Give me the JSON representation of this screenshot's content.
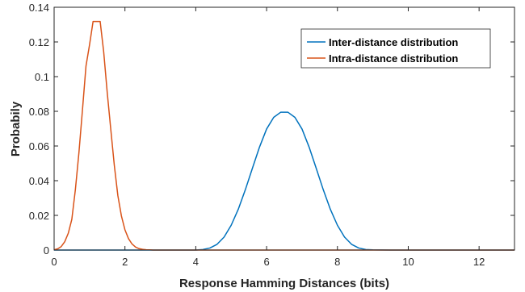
{
  "chart_data": {
    "type": "line",
    "title": "",
    "xlabel": "Response Hamming Distances (bits)",
    "ylabel": "Probabily",
    "xlim": [
      0,
      13
    ],
    "ylim": [
      0,
      0.14
    ],
    "xticks": [
      0,
      2,
      4,
      6,
      8,
      10,
      12
    ],
    "yticks": [
      0,
      0.02,
      0.04,
      0.06,
      0.08,
      0.1,
      0.12,
      0.14
    ],
    "xtick_labels": [
      "0",
      "2",
      "4",
      "6",
      "8",
      "10",
      "12"
    ],
    "ytick_labels": [
      "0",
      "0.02",
      "0.04",
      "0.06",
      "0.08",
      "0.1",
      "0.12",
      "0.14"
    ],
    "grid": false,
    "legend_position": "top-right",
    "series": [
      {
        "name": "Inter-distance distribution",
        "color": "#0072BD",
        "x": [
          0,
          0.5,
          1,
          1.5,
          2,
          2.5,
          3,
          3.5,
          4,
          4.2,
          4.4,
          4.6,
          4.8,
          5.0,
          5.2,
          5.4,
          5.6,
          5.8,
          6.0,
          6.2,
          6.4,
          6.6,
          6.8,
          7.0,
          7.2,
          7.4,
          7.6,
          7.8,
          8.0,
          8.2,
          8.4,
          8.6,
          8.8,
          9.0,
          9.5,
          10,
          11,
          12,
          13
        ],
        "y": [
          0,
          0,
          0,
          0,
          0,
          0,
          0,
          0,
          0,
          0.0003,
          0.0012,
          0.0033,
          0.0075,
          0.0143,
          0.0235,
          0.0348,
          0.0472,
          0.0594,
          0.0698,
          0.0765,
          0.0795,
          0.0795,
          0.0765,
          0.0698,
          0.0594,
          0.0472,
          0.0348,
          0.0235,
          0.0143,
          0.0075,
          0.0033,
          0.0012,
          0.0003,
          0.0001,
          0,
          0,
          0,
          0,
          0
        ]
      },
      {
        "name": "Intra-distance distribution",
        "color": "#D95319",
        "x": [
          0,
          0.1,
          0.2,
          0.3,
          0.4,
          0.5,
          0.6,
          0.7,
          0.8,
          0.9,
          1.0,
          1.1,
          1.2,
          1.3,
          1.4,
          1.5,
          1.6,
          1.7,
          1.8,
          1.9,
          2.0,
          2.1,
          2.2,
          2.3,
          2.4,
          2.5,
          2.6,
          2.7,
          2.8,
          2.9,
          3.0,
          3.5,
          4,
          6,
          8,
          10,
          13
        ],
        "y": [
          0.0002,
          0.0007,
          0.002,
          0.0048,
          0.0097,
          0.0177,
          0.0348,
          0.056,
          0.0807,
          0.1061,
          0.1183,
          0.1318,
          0.1318,
          0.1318,
          0.1143,
          0.0908,
          0.0696,
          0.0488,
          0.0314,
          0.0197,
          0.0117,
          0.0066,
          0.0035,
          0.0017,
          0.0008,
          0.0004,
          0.0002,
          0.0001,
          0,
          0,
          0,
          0,
          0,
          0,
          0,
          0,
          0
        ]
      }
    ]
  }
}
